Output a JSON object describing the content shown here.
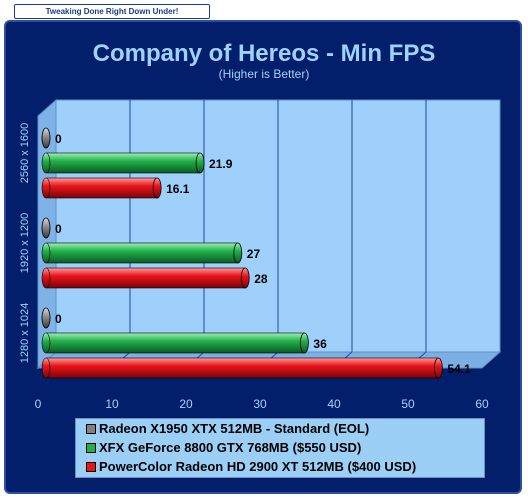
{
  "banner": "Tweaking Done Right Down Under!",
  "chart_data": {
    "type": "bar",
    "orientation": "horizontal",
    "title": "Company of Hereos - Min FPS",
    "subtitle": "(Higher is Better)",
    "categories": [
      "2560 x 1600",
      "1920 x 1200",
      "1280 x 1024"
    ],
    "series": [
      {
        "name": "Radeon X1950 XTX 512MB - Standard (EOL)",
        "color": "#808080",
        "values": [
          0,
          0,
          0
        ],
        "labels": [
          "0",
          "0",
          "0"
        ]
      },
      {
        "name": "XFX GeForce 8800 GTX 768MB ($550 USD)",
        "color": "#22b14c",
        "values": [
          21.9,
          27,
          36
        ],
        "labels": [
          "21.9",
          "27",
          "36"
        ]
      },
      {
        "name": "PowerColor Radeon HD 2900 XT 512MB ($400 USD)",
        "color": "#e8141a",
        "values": [
          16.1,
          28,
          54.1
        ],
        "labels": [
          "16.1",
          "28",
          "54.1"
        ]
      }
    ],
    "xlim": [
      0,
      60
    ],
    "xticks": [
      "0",
      "10",
      "20",
      "30",
      "40",
      "50",
      "60"
    ],
    "grid": true,
    "legend_position": "bottom"
  }
}
